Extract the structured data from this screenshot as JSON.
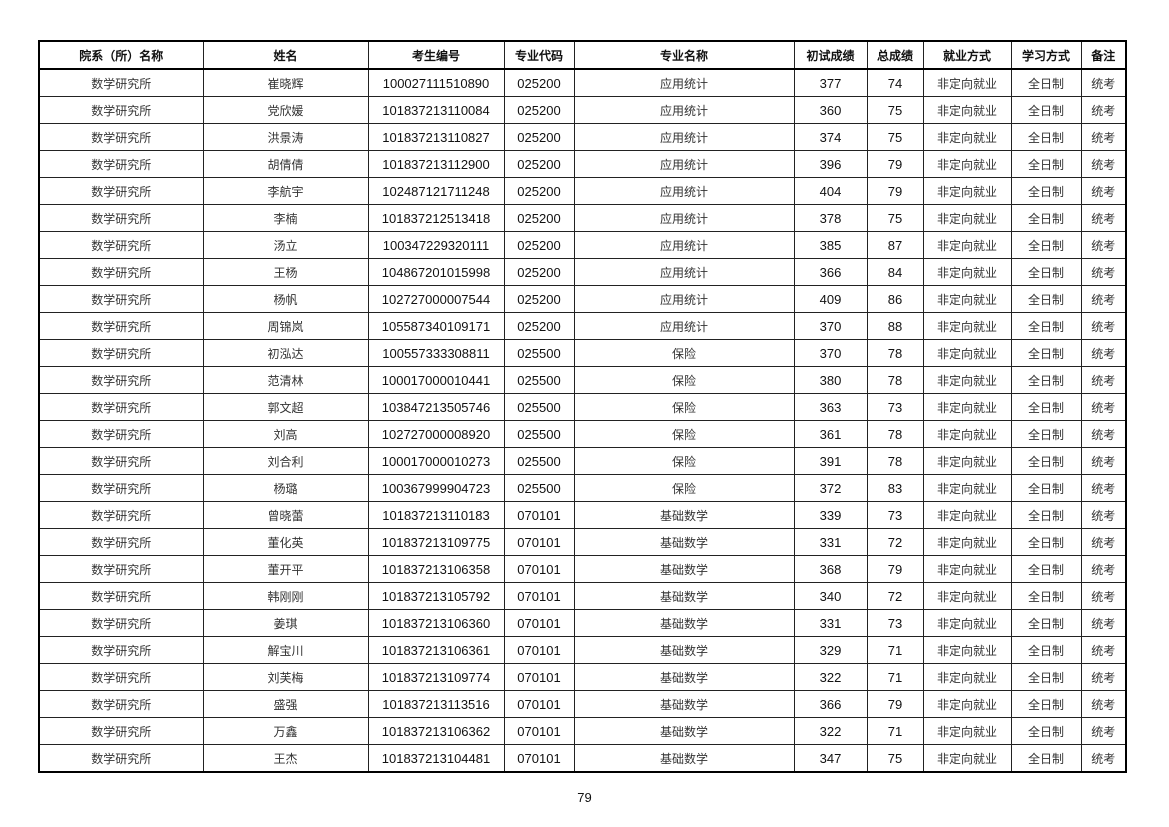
{
  "table": {
    "headers": [
      "院系（所）名称",
      "姓名",
      "考生编号",
      "专业代码",
      "专业名称",
      "初试成绩",
      "总成绩",
      "就业方式",
      "学习方式",
      "备注"
    ],
    "rows": [
      [
        "数学研究所",
        "崔晓辉",
        "100027111510890",
        "025200",
        "应用统计",
        "377",
        "74",
        "非定向就业",
        "全日制",
        "统考"
      ],
      [
        "数学研究所",
        "党欣媛",
        "101837213110084",
        "025200",
        "应用统计",
        "360",
        "75",
        "非定向就业",
        "全日制",
        "统考"
      ],
      [
        "数学研究所",
        "洪景涛",
        "101837213110827",
        "025200",
        "应用统计",
        "374",
        "75",
        "非定向就业",
        "全日制",
        "统考"
      ],
      [
        "数学研究所",
        "胡倩倩",
        "101837213112900",
        "025200",
        "应用统计",
        "396",
        "79",
        "非定向就业",
        "全日制",
        "统考"
      ],
      [
        "数学研究所",
        "李航宇",
        "102487121711248",
        "025200",
        "应用统计",
        "404",
        "79",
        "非定向就业",
        "全日制",
        "统考"
      ],
      [
        "数学研究所",
        "李楠",
        "101837212513418",
        "025200",
        "应用统计",
        "378",
        "75",
        "非定向就业",
        "全日制",
        "统考"
      ],
      [
        "数学研究所",
        "汤立",
        "100347229320111",
        "025200",
        "应用统计",
        "385",
        "87",
        "非定向就业",
        "全日制",
        "统考"
      ],
      [
        "数学研究所",
        "王杨",
        "104867201015998",
        "025200",
        "应用统计",
        "366",
        "84",
        "非定向就业",
        "全日制",
        "统考"
      ],
      [
        "数学研究所",
        "杨帆",
        "102727000007544",
        "025200",
        "应用统计",
        "409",
        "86",
        "非定向就业",
        "全日制",
        "统考"
      ],
      [
        "数学研究所",
        "周锦岚",
        "105587340109171",
        "025200",
        "应用统计",
        "370",
        "88",
        "非定向就业",
        "全日制",
        "统考"
      ],
      [
        "数学研究所",
        "初泓达",
        "100557333308811",
        "025500",
        "保险",
        "370",
        "78",
        "非定向就业",
        "全日制",
        "统考"
      ],
      [
        "数学研究所",
        "范清林",
        "100017000010441",
        "025500",
        "保险",
        "380",
        "78",
        "非定向就业",
        "全日制",
        "统考"
      ],
      [
        "数学研究所",
        "郭文超",
        "103847213505746",
        "025500",
        "保险",
        "363",
        "73",
        "非定向就业",
        "全日制",
        "统考"
      ],
      [
        "数学研究所",
        "刘高",
        "102727000008920",
        "025500",
        "保险",
        "361",
        "78",
        "非定向就业",
        "全日制",
        "统考"
      ],
      [
        "数学研究所",
        "刘合利",
        "100017000010273",
        "025500",
        "保险",
        "391",
        "78",
        "非定向就业",
        "全日制",
        "统考"
      ],
      [
        "数学研究所",
        "杨璐",
        "100367999904723",
        "025500",
        "保险",
        "372",
        "83",
        "非定向就业",
        "全日制",
        "统考"
      ],
      [
        "数学研究所",
        "曾晓蕾",
        "101837213110183",
        "070101",
        "基础数学",
        "339",
        "73",
        "非定向就业",
        "全日制",
        "统考"
      ],
      [
        "数学研究所",
        "董化英",
        "101837213109775",
        "070101",
        "基础数学",
        "331",
        "72",
        "非定向就业",
        "全日制",
        "统考"
      ],
      [
        "数学研究所",
        "董开平",
        "101837213106358",
        "070101",
        "基础数学",
        "368",
        "79",
        "非定向就业",
        "全日制",
        "统考"
      ],
      [
        "数学研究所",
        "韩刚刚",
        "101837213105792",
        "070101",
        "基础数学",
        "340",
        "72",
        "非定向就业",
        "全日制",
        "统考"
      ],
      [
        "数学研究所",
        "姜琪",
        "101837213106360",
        "070101",
        "基础数学",
        "331",
        "73",
        "非定向就业",
        "全日制",
        "统考"
      ],
      [
        "数学研究所",
        "解宝川",
        "101837213106361",
        "070101",
        "基础数学",
        "329",
        "71",
        "非定向就业",
        "全日制",
        "统考"
      ],
      [
        "数学研究所",
        "刘芙梅",
        "101837213109774",
        "070101",
        "基础数学",
        "322",
        "71",
        "非定向就业",
        "全日制",
        "统考"
      ],
      [
        "数学研究所",
        "盛强",
        "101837213113516",
        "070101",
        "基础数学",
        "366",
        "79",
        "非定向就业",
        "全日制",
        "统考"
      ],
      [
        "数学研究所",
        "万鑫",
        "101837213106362",
        "070101",
        "基础数学",
        "322",
        "71",
        "非定向就业",
        "全日制",
        "统考"
      ],
      [
        "数学研究所",
        "王杰",
        "101837213104481",
        "070101",
        "基础数学",
        "347",
        "75",
        "非定向就业",
        "全日制",
        "统考"
      ]
    ]
  },
  "page_number": "79"
}
